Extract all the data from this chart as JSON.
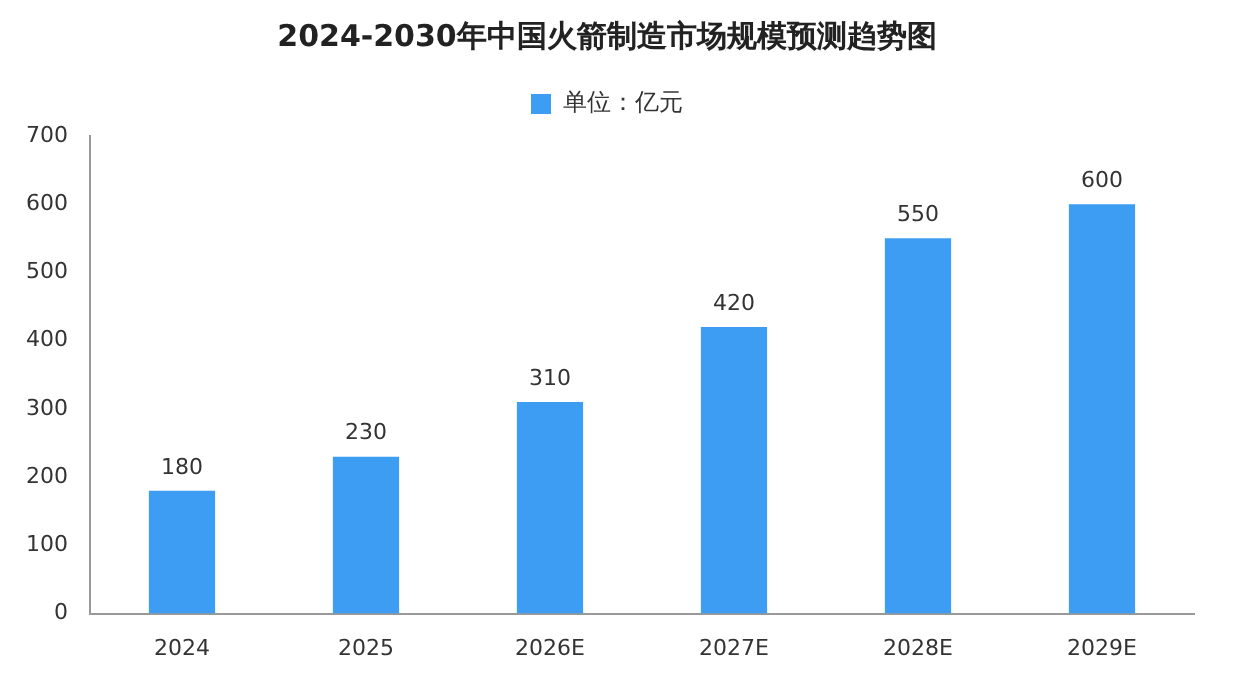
{
  "chart_data": {
    "type": "bar",
    "title": "2024-2030年中国火箭制造市场规模预测趋势图",
    "categories": [
      "2024",
      "2025",
      "2026E",
      "2027E",
      "2028E",
      "2029E"
    ],
    "series": [
      {
        "name": "单位：亿元",
        "color": "#3d9df2",
        "values": [
          180,
          230,
          310,
          420,
          550,
          600
        ]
      }
    ],
    "ylim": [
      0,
      700
    ],
    "yticks": [
      0,
      100,
      200,
      300,
      400,
      500,
      600,
      700
    ],
    "grid": false,
    "legend": "top",
    "data_labels": true
  }
}
